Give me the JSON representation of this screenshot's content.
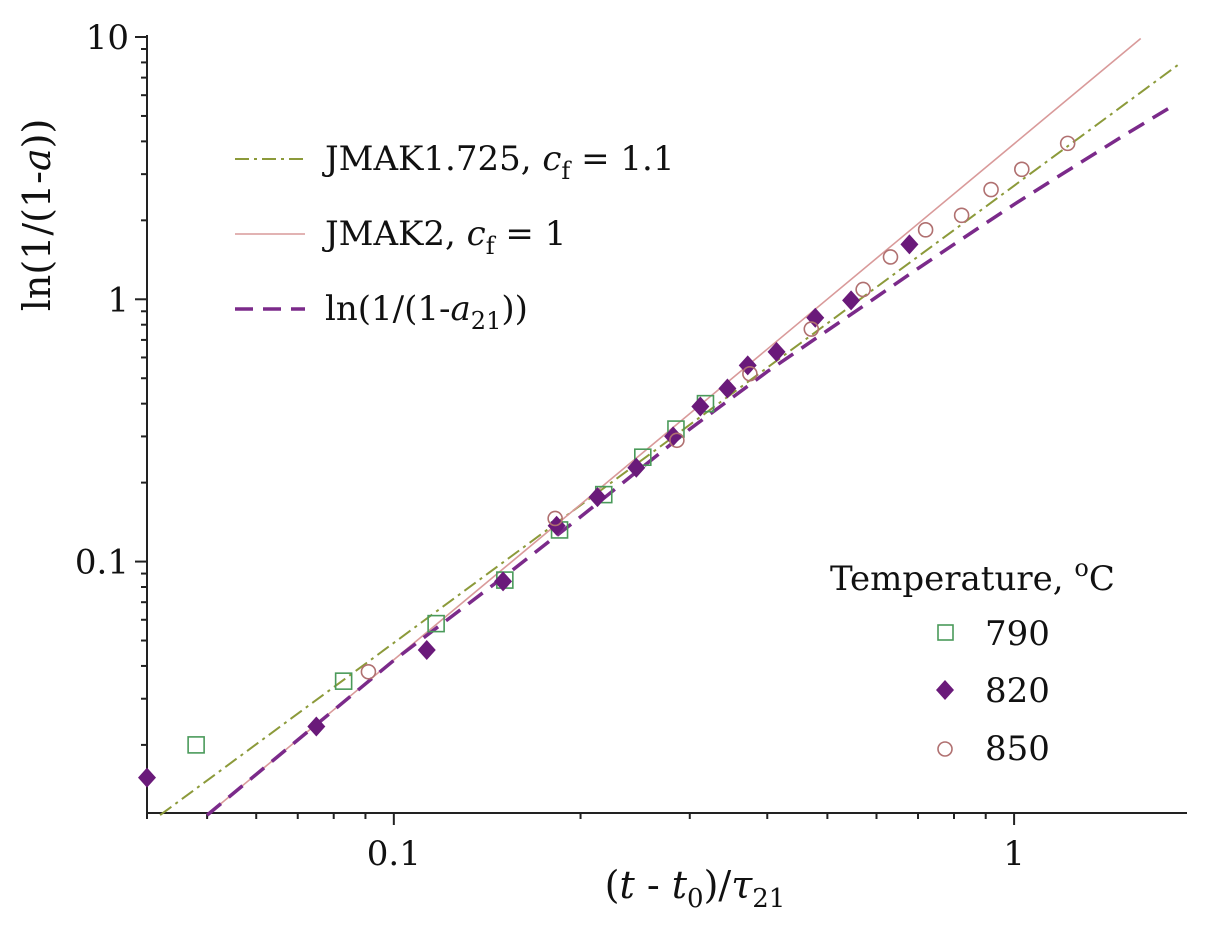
{
  "chart_data": {
    "type": "scatter",
    "xscale": "log",
    "yscale": "log",
    "xlim": [
      0.04,
      1.9
    ],
    "ylim": [
      0.011,
      10
    ],
    "xticks": [
      {
        "value": 0.1,
        "label": "0.1"
      },
      {
        "value": 1,
        "label": "1"
      }
    ],
    "yticks": [
      {
        "value": 0.1,
        "label": "0.1"
      },
      {
        "value": 1,
        "label": "1"
      },
      {
        "value": 10,
        "label": "10"
      }
    ],
    "xlabel": {
      "pre": "(",
      "t": "t",
      "mid": " - ",
      "t2": "t",
      "sub0": "0",
      "post": ")/",
      "tau": "τ",
      "sub": "21"
    },
    "ylabel": {
      "pre": "ln(1/(1-",
      "a": "a",
      "post": "))"
    },
    "lines": [
      {
        "name": "JMAK1.725",
        "cf_label": "c",
        "cf_sub": "f",
        "cf_value": " = 1.1",
        "color": "#8c9a3a",
        "dash": "14 5 3 5",
        "width": 2,
        "x": [
          0.042,
          1.85
        ],
        "y": [
          0.0108,
          7.92
        ]
      },
      {
        "name": "JMAK2",
        "cf_label": "c",
        "cf_sub": "f",
        "cf_value": " = 1",
        "color": "#d99a9a",
        "dash": "",
        "width": 1.6,
        "x": [
          0.05,
          1.6
        ],
        "y": [
          0.0108,
          9.87
        ]
      },
      {
        "name": "ln(1/(1-",
        "a_label": "a",
        "a_sub": "21",
        "tail": "))",
        "color": "#7b2a8a",
        "dash": "18 10",
        "width": 3.5,
        "x": [
          0.05,
          0.1,
          0.15,
          0.2,
          0.3,
          0.4,
          0.5,
          0.6,
          0.7,
          0.8,
          0.9,
          1.0,
          1.2,
          1.5,
          1.8
        ],
        "y": [
          0.0108,
          0.042,
          0.087,
          0.148,
          0.32,
          0.53,
          0.76,
          1.02,
          1.31,
          1.62,
          1.95,
          2.3,
          3.02,
          4.2,
          5.45
        ]
      }
    ],
    "legend_title": {
      "text": "Temperature, ",
      "sup": "o",
      "unit": "C"
    },
    "series": [
      {
        "name": "790",
        "marker": "square",
        "color": "#4a9a5a",
        "x": [
          0.048,
          0.083,
          0.117,
          0.151,
          0.185,
          0.218,
          0.252,
          0.285,
          0.318
        ],
        "y": [
          0.02,
          0.035,
          0.058,
          0.085,
          0.132,
          0.18,
          0.25,
          0.32,
          0.4
        ]
      },
      {
        "name": "820",
        "marker": "diamond",
        "color": "#6a1a7a",
        "x": [
          0.04,
          0.075,
          0.113,
          0.15,
          0.183,
          0.213,
          0.246,
          0.282,
          0.312,
          0.345,
          0.372,
          0.414,
          0.478,
          0.546,
          0.678
        ],
        "y": [
          0.015,
          0.0235,
          0.046,
          0.084,
          0.137,
          0.176,
          0.228,
          0.3,
          0.39,
          0.457,
          0.56,
          0.63,
          0.85,
          0.99,
          1.62
        ]
      },
      {
        "name": "850",
        "marker": "circle",
        "color": "#b07070",
        "x": [
          0.091,
          0.182,
          0.286,
          0.375,
          0.471,
          0.571,
          0.632,
          0.72,
          0.823,
          0.918,
          1.029,
          1.22
        ],
        "y": [
          0.038,
          0.146,
          0.29,
          0.52,
          0.77,
          1.09,
          1.45,
          1.84,
          2.09,
          2.62,
          3.13,
          3.93
        ]
      }
    ]
  }
}
